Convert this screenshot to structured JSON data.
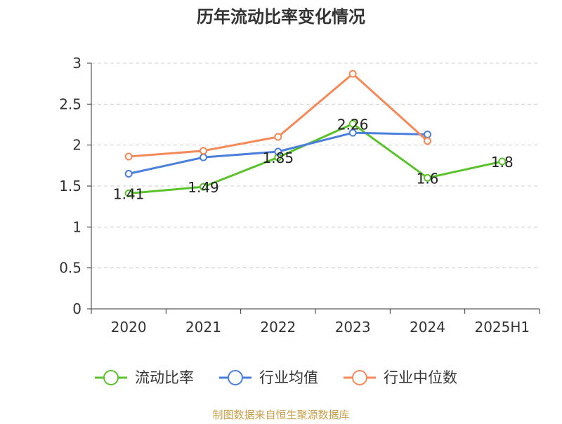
{
  "chart_data": {
    "type": "line",
    "title": "历年流动比率变化情况",
    "categories": [
      "2020",
      "2021",
      "2022",
      "2023",
      "2024",
      "2025H1"
    ],
    "y_ticks": [
      "0",
      "0.5",
      "1",
      "1.5",
      "2",
      "2.5",
      "3"
    ],
    "ylim": [
      0,
      3
    ],
    "grid": true,
    "legend_position": "bottom",
    "series": [
      {
        "name": "流动比率",
        "color": "#5cc22c",
        "values": [
          1.41,
          1.49,
          1.85,
          2.26,
          1.6,
          1.8
        ],
        "labels": [
          "1.41",
          "1.49",
          "1.85",
          "2.26",
          "1.6",
          "1.8"
        ]
      },
      {
        "name": "行业均值",
        "color": "#4a7fdc",
        "values": [
          1.65,
          1.85,
          1.92,
          2.15,
          2.13,
          null
        ]
      },
      {
        "name": "行业中位数",
        "color": "#f5895a",
        "values": [
          1.86,
          1.93,
          2.1,
          2.87,
          2.05,
          null
        ]
      }
    ],
    "source": "制图数据来自恒生聚源数据库"
  }
}
